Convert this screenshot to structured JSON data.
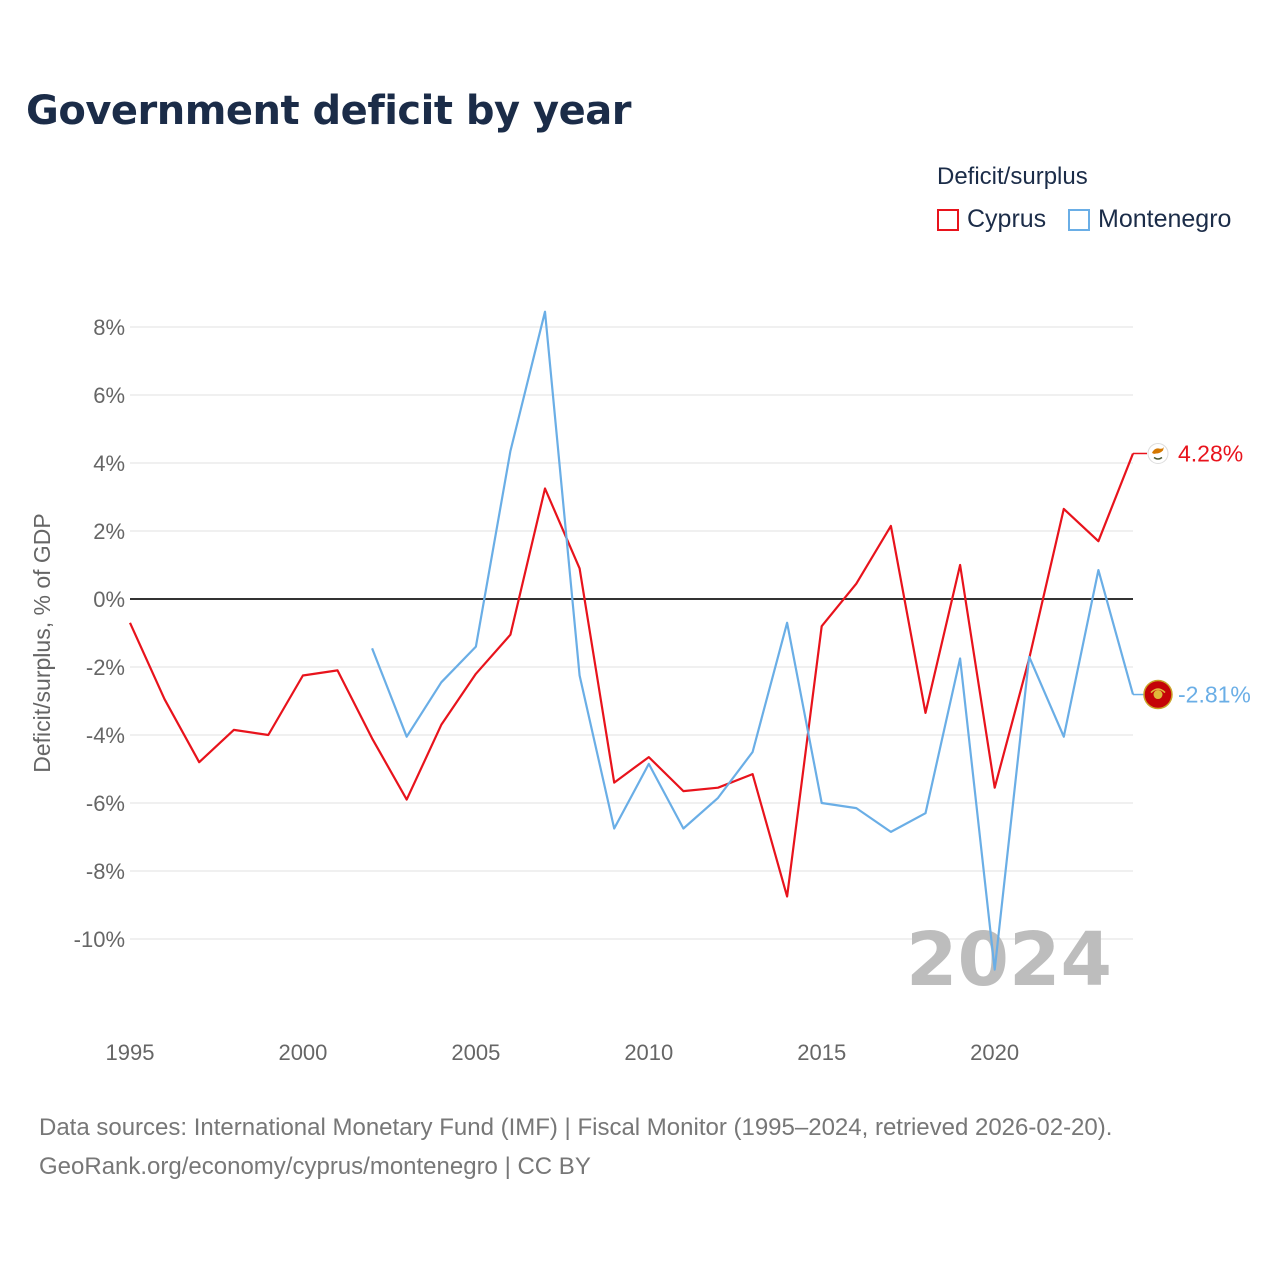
{
  "chart_data": {
    "type": "line",
    "title": "Government deficit by year",
    "xlabel": "",
    "ylabel": "Deficit/surplus, % of GDP",
    "legend_title": "Deficit/surplus",
    "legend_position": "top-right",
    "xlim": [
      1995,
      2024
    ],
    "ylim": [
      -12,
      8.7
    ],
    "x_ticks": [
      1995,
      2000,
      2005,
      2010,
      2015,
      2020
    ],
    "y_ticks": [
      8,
      6,
      4,
      2,
      0,
      -2,
      -4,
      -6,
      -8,
      -10
    ],
    "y_tick_labels": [
      "8%",
      "6%",
      "4%",
      "2%",
      "0%",
      "-2%",
      "-4%",
      "-6%",
      "-8%",
      "-10%"
    ],
    "grid": true,
    "zero_line": true,
    "watermark_year": "2024",
    "x": [
      1995,
      1996,
      1997,
      1998,
      1999,
      2000,
      2001,
      2002,
      2003,
      2004,
      2005,
      2006,
      2007,
      2008,
      2009,
      2010,
      2011,
      2012,
      2013,
      2014,
      2015,
      2016,
      2017,
      2018,
      2019,
      2020,
      2021,
      2022,
      2023,
      2024
    ],
    "series": [
      {
        "name": "Cyprus",
        "color": "#e8131c",
        "end_label": "4.28%",
        "flag_icon": "cyprus-flag-icon",
        "values": [
          -0.7,
          -2.95,
          -4.8,
          -3.85,
          -4.0,
          -2.25,
          -2.1,
          -4.1,
          -5.9,
          -3.7,
          -2.2,
          -1.05,
          3.25,
          0.9,
          -5.4,
          -4.65,
          -5.65,
          -5.55,
          -5.15,
          -8.75,
          -0.8,
          0.45,
          2.15,
          -3.35,
          1.0,
          -5.55,
          -1.75,
          2.65,
          1.7,
          4.28
        ]
      },
      {
        "name": "Montenegro",
        "color": "#6aaee6",
        "end_label": "-2.81%",
        "flag_icon": "montenegro-flag-icon",
        "values": [
          null,
          null,
          null,
          null,
          null,
          null,
          null,
          -1.45,
          -4.05,
          -2.45,
          -1.4,
          4.35,
          8.45,
          -2.25,
          -6.75,
          -4.85,
          -6.75,
          -5.85,
          -4.5,
          -0.7,
          -6.0,
          -6.15,
          -6.85,
          -6.3,
          -1.75,
          -10.9,
          -1.7,
          -4.05,
          0.85,
          -2.81
        ]
      }
    ]
  },
  "source": {
    "line1": "Data sources: International Monetary Fund (IMF) | Fiscal Monitor (1995–2024, retrieved 2026-02-20).",
    "line2": "GeoRank.org/economy/cyprus/montenegro | CC BY"
  }
}
